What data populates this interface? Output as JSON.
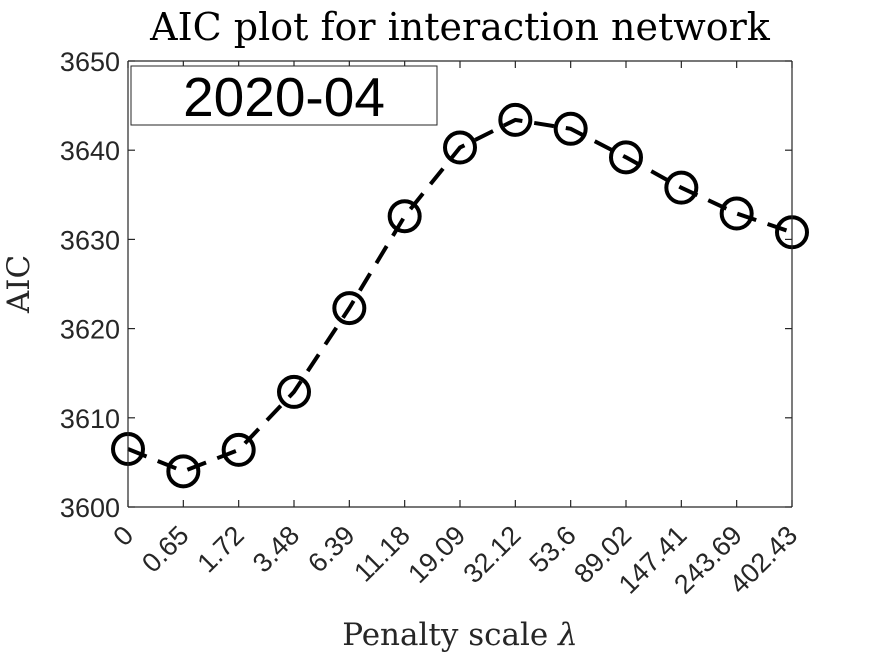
{
  "chart_data": {
    "type": "line",
    "title": "AIC plot for interaction network",
    "xlabel": "Penalty scale",
    "xlabel_symbol": "λ",
    "ylabel": "AIC",
    "categories": [
      "0",
      "0.65",
      "1.72",
      "3.48",
      "6.39",
      "11.18",
      "19.09",
      "32.12",
      "53.6",
      "89.02",
      "147.41",
      "243.69",
      "402.43"
    ],
    "series": [
      {
        "values": [
          3606.5,
          3604.0,
          3606.4,
          3612.9,
          3622.3,
          3632.6,
          3640.3,
          3643.4,
          3642.4,
          3639.2,
          3635.8,
          3632.9,
          3630.8
        ],
        "line_style": "dashed",
        "marker": "circle",
        "color": "#000000"
      }
    ],
    "ylim": [
      3600,
      3650
    ],
    "yticks": [
      3600,
      3610,
      3620,
      3630,
      3640,
      3650
    ],
    "x_tick_rotation": "45",
    "grid": false,
    "legend_label": "2020-04",
    "legend_position": "top-left"
  }
}
